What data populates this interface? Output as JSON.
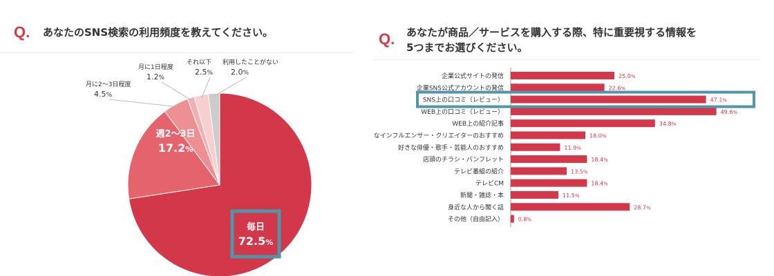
{
  "q_mark": "Q.",
  "left": {
    "question": "あなたのSNS検索の利用頻度を教えてください。"
  },
  "right": {
    "question_line1": "あなたが商品／サービスを購入する際、特に重要視する情報を",
    "question_line2": "5つまでお選びください。"
  },
  "chart_data": [
    {
      "type": "pie",
      "title": "あなたのSNS検索の利用頻度を教えてください。",
      "unit": "%",
      "slices": [
        {
          "label": "毎日",
          "value": 72.5,
          "color": "#d3374a",
          "highlight": true
        },
        {
          "label": "週2〜3日",
          "value": 17.2,
          "color": "#e5636c"
        },
        {
          "label": "月に2〜3日程度",
          "value": 4.5,
          "color": "#ee8f94"
        },
        {
          "label": "月に1日程度",
          "value": 1.2,
          "color": "#f3b0b3"
        },
        {
          "label": "それ以下",
          "value": 2.5,
          "color": "#f7cfd1"
        },
        {
          "label": "利用したことがない",
          "value": 2.0,
          "color": "#cccccc"
        }
      ],
      "highlight_color": "#4f96ad"
    },
    {
      "type": "bar",
      "orientation": "horizontal",
      "title": "あなたが商品／サービスを購入する際、特に重要視する情報を5つまでお選びください。",
      "unit": "%",
      "bar_color": "#d3374a",
      "highlight_color": "#4f96ad",
      "highlight_index": 2,
      "categories": [
        "企業公式サイトの発信",
        "企業SNS公式アカウントの発信",
        "SNS上の口コミ（レビュー）",
        "WEB上の口コミ（レビュー）",
        "WEB上の紹介記事",
        "好きなインフルエンサー・クリエイターのおすすめ",
        "好きな俳優・歌手・芸能人のおすすめ",
        "店頭のチラシ・パンフレット",
        "テレビ番組の紹介",
        "テレビCM",
        "新聞・雑誌・本",
        "身近な人から聞く話",
        "その他（自由記入）"
      ],
      "values": [
        25.0,
        22.6,
        47.1,
        49.6,
        34.8,
        18.0,
        11.9,
        18.4,
        13.5,
        18.4,
        11.5,
        28.7,
        0.8
      ],
      "value_labels": [
        "25.0%",
        "22.6%",
        "47.1%",
        "49.6%",
        "34.8%",
        "18.0%",
        "11.9%",
        "18.4%",
        "13.5%",
        "18.4%",
        "11.5%",
        "28.7%",
        "0.8%"
      ]
    }
  ]
}
